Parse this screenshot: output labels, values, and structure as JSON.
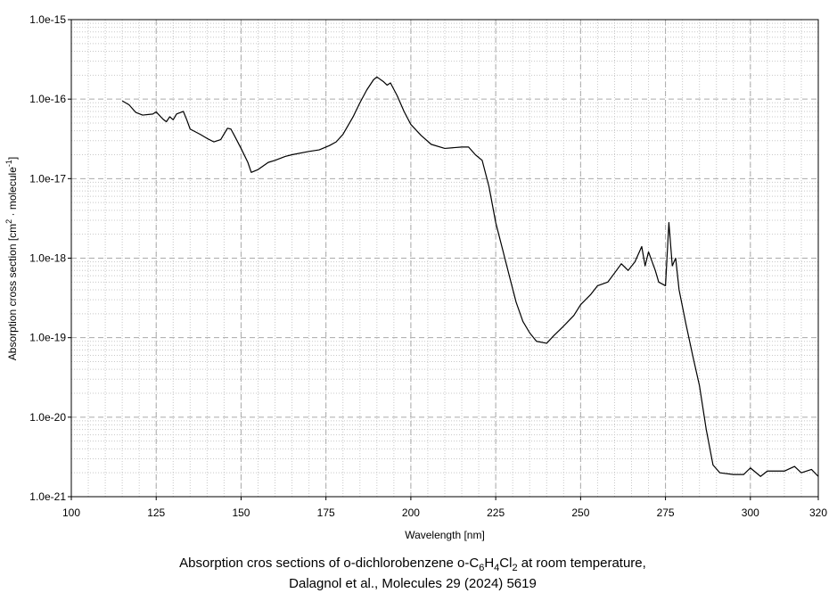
{
  "chart_data": {
    "type": "line",
    "x_label": "Wavelength [nm]",
    "y_label_parts": [
      "Absorption cross section [cm",
      "2",
      " · molecule",
      "-1",
      "]"
    ],
    "caption_parts": [
      "Absorption cros sections of o-dichlorobenzene o-C",
      "6",
      "H",
      "4",
      "Cl",
      "2",
      " at room temperature,"
    ],
    "caption_line2": "Dalagnol et al., Molecules 29 (2024) 5619",
    "log_y": true,
    "grid": true,
    "minor_grid": true,
    "color": "#000000",
    "xlim": [
      100,
      320
    ],
    "xticks": [
      100,
      125,
      150,
      175,
      200,
      225,
      250,
      275,
      300,
      320
    ],
    "ylim": [
      1e-21,
      1e-15
    ],
    "yticks": [
      {
        "value": 1e-21,
        "label": "1.0e-21"
      },
      {
        "value": 1e-20,
        "label": "1.0e-20"
      },
      {
        "value": 1e-19,
        "label": "1.0e-19"
      },
      {
        "value": 1e-18,
        "label": "1.0e-18"
      },
      {
        "value": 1e-17,
        "label": "1.0e-17"
      },
      {
        "value": 1e-16,
        "label": "1.0e-16"
      },
      {
        "value": 1e-15,
        "label": "1.0e-15"
      }
    ],
    "x": [
      115,
      117,
      119,
      121,
      124,
      125,
      127,
      128,
      129,
      130,
      131,
      133,
      134,
      135,
      138,
      140,
      142,
      144,
      146,
      147,
      148,
      150,
      152,
      153,
      155,
      158,
      160,
      163,
      165,
      170,
      173,
      176,
      178,
      180,
      183,
      185,
      187,
      189,
      190,
      192,
      193,
      194,
      196,
      198,
      200,
      203,
      206,
      210,
      215,
      217,
      219,
      221,
      223,
      225,
      227,
      229,
      231,
      233,
      235,
      237,
      240,
      242,
      245,
      248,
      250,
      253,
      255,
      258,
      260,
      262,
      264,
      266,
      268,
      269,
      270,
      272,
      273,
      275,
      276,
      277,
      278,
      279,
      281,
      283,
      285,
      287,
      289,
      291,
      295,
      298,
      300,
      303,
      305,
      310,
      313,
      315,
      318,
      320
    ],
    "values": [
      9.5e-17,
      8.5e-17,
      6.8e-17,
      6.3e-17,
      6.5e-17,
      6.9e-17,
      5.6e-17,
      5.2e-17,
      6e-17,
      5.5e-17,
      6.5e-17,
      7e-17,
      5.5e-17,
      4.2e-17,
      3.6e-17,
      3.2e-17,
      2.9e-17,
      3.1e-17,
      4.3e-17,
      4.2e-17,
      3.5e-17,
      2.4e-17,
      1.6e-17,
      1.2e-17,
      1.3e-17,
      1.6e-17,
      1.7e-17,
      1.9e-17,
      2e-17,
      2.2e-17,
      2.3e-17,
      2.6e-17,
      2.9e-17,
      3.6e-17,
      6e-17,
      9e-17,
      1.3e-16,
      1.75e-16,
      1.9e-16,
      1.65e-16,
      1.5e-16,
      1.6e-16,
      1.1e-16,
      7e-17,
      4.8e-17,
      3.5e-17,
      2.7e-17,
      2.4e-17,
      2.5e-17,
      2.5e-17,
      2e-17,
      1.7e-17,
      8e-18,
      2.8e-18,
      1.3e-18,
      6e-19,
      2.8e-19,
      1.6e-19,
      1.15e-19,
      9e-20,
      8.5e-20,
      1.05e-19,
      1.4e-19,
      1.9e-19,
      2.6e-19,
      3.5e-19,
      4.5e-19,
      5e-19,
      6.5e-19,
      8.5e-19,
      7e-19,
      9e-19,
      1.4e-18,
      8e-19,
      1.2e-18,
      7e-19,
      5e-19,
      4.5e-19,
      2.8e-18,
      8e-19,
      1e-18,
      4e-19,
      1.5e-19,
      6e-20,
      2.5e-20,
      7e-21,
      2.5e-21,
      2e-21,
      1.9e-21,
      1.9e-21,
      2.3e-21,
      1.8e-21,
      2.1e-21,
      2.1e-21,
      2.4e-21,
      2e-21,
      2.2e-21,
      1.8e-21
    ]
  }
}
